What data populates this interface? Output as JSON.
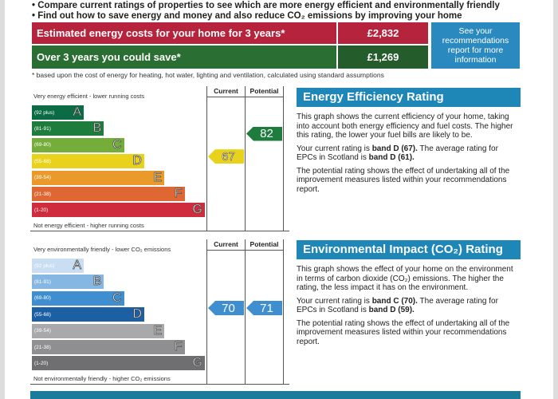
{
  "bullets": [
    "Compare current ratings of properties to see which are more energy efficient and environmentally friendly",
    "Find out how to save energy and money and also reduce CO₂ emissions by improving your home"
  ],
  "costs": {
    "estimated_label": "Estimated energy costs for your home for 3 years*",
    "estimated_value": "£2,832",
    "save_label": "Over 3 years you could save*",
    "save_value": "£1,269",
    "info": "See your recommendations report for more information",
    "footnote": "* based upon the cost of energy for heating, hot water, lighting and ventilation, calculated using standard assumptions"
  },
  "energy": {
    "top": "Very energy efficient - lower running costs",
    "bottom": "Not energy efficient - higher running costs",
    "current_hdr": "Current",
    "potential_hdr": "Potential",
    "current": "67",
    "potential": "82",
    "bands": [
      {
        "range": "(92 plus)",
        "letter": "A",
        "color": "#0b6b45"
      },
      {
        "range": "(81-91)",
        "letter": "B",
        "color": "#1e7d3c"
      },
      {
        "range": "(69-80)",
        "letter": "C",
        "color": "#74ad3a"
      },
      {
        "range": "(55-68)",
        "letter": "D",
        "color": "#e9d21c"
      },
      {
        "range": "(39-54)",
        "letter": "E",
        "color": "#e99a2a"
      },
      {
        "range": "(21-38)",
        "letter": "F",
        "color": "#df6733"
      },
      {
        "range": "(1-20)",
        "letter": "G",
        "color": "#cf2c3e"
      }
    ],
    "title": "Energy Efficiency Rating",
    "p1": "This graph shows the current efficiency of your home, taking into account both energy efficiency and fuel costs. The higher this rating, the lower your fuel bills are likely to be.",
    "p2a": "Your current rating is ",
    "p2b": "band D (67).",
    "p2c": " The average rating for EPCs in Scotland is ",
    "p2d": "band D (61).",
    "p3": "The potential rating shows the effect of undertaking all of the improvement measures listed within your recommendations report."
  },
  "env": {
    "top": "Very environmentally friendly - lower CO₂ emissions",
    "bottom": "Not environmentally friendly - higher CO₂ emissions",
    "current_hdr": "Current",
    "potential_hdr": "Potential",
    "current": "70",
    "potential": "71",
    "bands": [
      {
        "range": "(92 plus)",
        "letter": "A",
        "color": "#c9def2"
      },
      {
        "range": "(81-91)",
        "letter": "B",
        "color": "#86b7e2"
      },
      {
        "range": "(69-80)",
        "letter": "C",
        "color": "#3f8fd0"
      },
      {
        "range": "(55-68)",
        "letter": "D",
        "color": "#1c5fa3"
      },
      {
        "range": "(39-54)",
        "letter": "E",
        "color": "#a9a9ab"
      },
      {
        "range": "(21-38)",
        "letter": "F",
        "color": "#8f8f91"
      },
      {
        "range": "(1-20)",
        "letter": "G",
        "color": "#6f6f71"
      }
    ],
    "title": "Environmental Impact (CO₂) Rating",
    "p1": "This graph shows the effect of your home on the environment in terms of carbon dioxide (CO₂) emissions. The higher the rating, the less impact it has on the environment.",
    "p2a": "Your current rating is ",
    "p2b": "band C (70).",
    "p2c": " The average rating for EPCs in Scotland is ",
    "p2d": "band D (59).",
    "p3": "The potential rating shows the effect of undertaking all of the improvement measures listed within your recommendations report."
  }
}
